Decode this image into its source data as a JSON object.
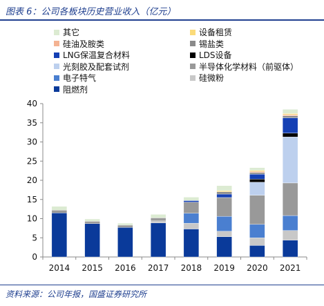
{
  "header": {
    "title": "图表 6：公司各板块历史营业收入（亿元）"
  },
  "footer": {
    "source": "资料来源：公司年报，国盛证券研究所"
  },
  "chart_data": {
    "type": "bar",
    "stacked": true,
    "categories": [
      "2014",
      "2015",
      "2016",
      "2017",
      "2018",
      "2019",
      "2020",
      "2021"
    ],
    "ylim": [
      0,
      40
    ],
    "yticks": [
      0,
      5,
      10,
      15,
      20,
      25,
      30,
      35,
      40
    ],
    "grid": false,
    "legend_position": "top",
    "series": [
      {
        "name": "阻燃剂",
        "color": "#0a3a9a",
        "values": [
          11.5,
          8.7,
          7.7,
          8.9,
          7.3,
          5.3,
          3.0,
          4.4
        ]
      },
      {
        "name": "硅微粉",
        "color": "#c8c8c8",
        "values": [
          0.0,
          0.0,
          0.0,
          0.5,
          1.5,
          1.4,
          2.0,
          2.5
        ]
      },
      {
        "name": "电子特气",
        "color": "#4a7fd0",
        "values": [
          0.0,
          0.0,
          0.0,
          0.0,
          2.6,
          3.9,
          3.5,
          3.9
        ]
      },
      {
        "name": "半导体化学材料（前驱体）",
        "color": "#999999",
        "values": [
          0.7,
          0.6,
          0.6,
          0.8,
          2.9,
          4.9,
          7.6,
          8.5
        ]
      },
      {
        "name": "光刻胶及配套试剂",
        "color": "#bdd0ee",
        "values": [
          0.0,
          0.0,
          0.0,
          0.0,
          0.0,
          0.0,
          3.4,
          12.0
        ]
      },
      {
        "name": "LDS设备",
        "color": "#000000",
        "values": [
          0.0,
          0.0,
          0.0,
          0.0,
          0.0,
          0.0,
          0.8,
          1.0
        ]
      },
      {
        "name": "LNG保温复合材料",
        "color": "#1540b4",
        "values": [
          0.0,
          0.0,
          0.0,
          0.0,
          0.4,
          0.9,
          1.3,
          4.0
        ]
      },
      {
        "name": "锡盐类",
        "color": "#8a8a8a",
        "values": [
          0.0,
          0.0,
          0.0,
          0.0,
          0.0,
          0.6,
          0.4,
          0.5
        ]
      },
      {
        "name": "硅油及胺类",
        "color": "#f4b393",
        "values": [
          0.0,
          0.0,
          0.0,
          0.0,
          0.0,
          0.0,
          0.3,
          0.3
        ]
      },
      {
        "name": "设备租赁",
        "color": "#fbdb7a",
        "values": [
          0.0,
          0.0,
          0.0,
          0.0,
          0.0,
          0.3,
          0.3,
          0.3
        ]
      },
      {
        "name": "其它",
        "color": "#dcebd2",
        "values": [
          1.0,
          0.6,
          0.5,
          0.9,
          0.9,
          1.3,
          0.7,
          1.1
        ]
      }
    ],
    "legend_order": [
      "其它",
      "设备租赁",
      "硅油及胺类",
      "锡盐类",
      "LNG保温复合材料",
      "LDS设备",
      "光刻胶及配套试剂",
      "半导体化学材料（前驱体）",
      "电子特气",
      "硅微粉",
      "阻燃剂"
    ]
  }
}
